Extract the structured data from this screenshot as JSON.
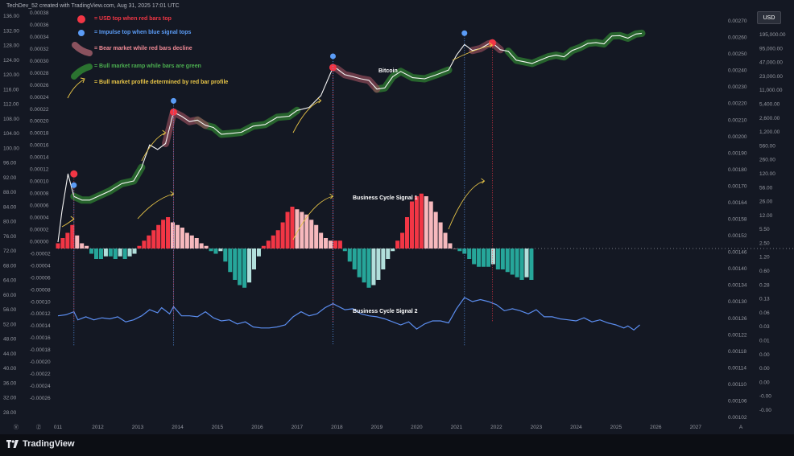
{
  "header": {
    "text": "TechDev_52 created with TradingView.com, Aug 31, 2025 17:01 UTC"
  },
  "footer": {
    "logo_text": "TradingView"
  },
  "scale_badge": "USD",
  "legend": [
    {
      "label": "= USD top when red bars top",
      "color": "#f23645",
      "marker": "dot-red"
    },
    {
      "label": "= Impulse top when blue signal tops",
      "color": "#5b9cf6",
      "marker": "dot-blue"
    },
    {
      "label": "= Bear market while red bars decline",
      "color": "#f28b96",
      "marker": "stroke-bear"
    },
    {
      "label": "= Bull market ramp while bars are green",
      "color": "#4caf50",
      "marker": "stroke-bull"
    },
    {
      "label": "= Bull market profile determined by red bar profile",
      "color": "#e8c547",
      "marker": "arrow-yellow"
    }
  ],
  "annotations": {
    "price": "Bitcoin",
    "signal1": "Business Cycle Signal 1",
    "signal2": "Business Cycle Signal 2"
  },
  "axes": {
    "left_outer": [
      "136.00",
      "132.00",
      "128.00",
      "124.00",
      "120.00",
      "116.00",
      "112.00",
      "108.00",
      "104.00",
      "100.00",
      "96.00",
      "92.00",
      "88.00",
      "84.00",
      "80.00",
      "76.00",
      "72.00",
      "68.00",
      "64.00",
      "60.00",
      "56.00",
      "52.00",
      "48.00",
      "44.00",
      "40.00",
      "36.00",
      "32.00",
      "28.00"
    ],
    "left_inner": [
      "0.00038",
      "0.00036",
      "0.00034",
      "0.00032",
      "0.00030",
      "0.00028",
      "0.00026",
      "0.00024",
      "0.00022",
      "0.00020",
      "0.00018",
      "0.00016",
      "0.00014",
      "0.00012",
      "0.00010",
      "0.00008",
      "0.00006",
      "0.00004",
      "0.00002",
      "0.00000",
      "-0.00002",
      "-0.00004",
      "-0.00006",
      "-0.00008",
      "-0.00010",
      "-0.00012",
      "-0.00014",
      "-0.00016",
      "-0.00018",
      "-0.00020",
      "-0.00022",
      "-0.00024",
      "-0.00026"
    ],
    "right_inner": [
      "0.00270",
      "0.00260",
      "0.00250",
      "0.00240",
      "0.00230",
      "0.00220",
      "0.00210",
      "0.00200",
      "0.00190",
      "0.00180",
      "0.00170",
      "0.00164",
      "0.00158",
      "0.00152",
      "0.00146",
      "0.00140",
      "0.00134",
      "0.00130",
      "0.00126",
      "0.00122",
      "0.00118",
      "0.00114",
      "0.00110",
      "0.00106",
      "0.00102"
    ],
    "right_outer": [
      "195,000.00",
      "95,000.00",
      "47,000.00",
      "23,000.00",
      "11,000.00",
      "5,400.00",
      "2,600.00",
      "1,200.00",
      "560.00",
      "260.00",
      "120.00",
      "56.00",
      "26.00",
      "12.00",
      "5.50",
      "2.50",
      "1.20",
      "0.60",
      "0.28",
      "0.13",
      "0.06",
      "0.03",
      "0.01",
      "0.00",
      "0.00",
      "0.00",
      "-0.00",
      "-0.00"
    ],
    "x_ticks": [
      "011",
      "2012",
      "2013",
      "2014",
      "2015",
      "2016",
      "2017",
      "2018",
      "2019",
      "2020",
      "2021",
      "2022",
      "2023",
      "2024",
      "2025",
      "2026",
      "2027"
    ]
  },
  "chart_data": [
    {
      "type": "line",
      "title": "Bitcoin",
      "scale": "log",
      "series": [
        {
          "x": [
            2011.0,
            2011.1,
            2011.25,
            2011.4,
            2011.6,
            2011.8,
            2012.0,
            2012.3,
            2012.6,
            2012.9,
            2013.1,
            2013.3,
            2013.5,
            2013.7,
            2013.9,
            2014.1,
            2014.3,
            2014.5,
            2014.7,
            2014.9,
            2015.1,
            2015.3,
            2015.6,
            2015.9,
            2016.2,
            2016.5,
            2016.8,
            2017.0,
            2017.3,
            2017.6,
            2017.9,
            2018.0,
            2018.2,
            2018.4,
            2018.6,
            2018.8,
            2019.0,
            2019.2,
            2019.4,
            2019.6,
            2019.9,
            2020.2,
            2020.5,
            2020.8,
            2021.0,
            2021.2,
            2021.4,
            2021.6,
            2021.8,
            2021.9,
            2022.1,
            2022.3,
            2022.5,
            2022.7,
            2022.9,
            2023.1,
            2023.3,
            2023.5,
            2023.7,
            2023.9,
            2024.1,
            2024.3,
            2024.5,
            2024.7,
            2024.9,
            2025.1,
            2025.3,
            2025.5,
            2025.65
          ],
          "y": [
            0.3,
            2,
            20,
            5,
            4,
            4,
            5,
            7,
            11,
            13,
            30,
            120,
            90,
            130,
            900,
            700,
            500,
            550,
            400,
            350,
            230,
            240,
            260,
            380,
            420,
            650,
            700,
            1000,
            1200,
            2500,
            14000,
            13000,
            9000,
            8000,
            7000,
            6400,
            3700,
            4000,
            8000,
            11000,
            7500,
            7000,
            9000,
            12000,
            30000,
            58000,
            40000,
            45000,
            60000,
            64000,
            42000,
            38000,
            22000,
            20000,
            18000,
            22000,
            27000,
            30000,
            27000,
            40000,
            48000,
            62000,
            65000,
            60000,
            98000,
            100000,
            85000,
            110000,
            115000
          ]
        }
      ]
    },
    {
      "type": "bar",
      "title": "Business Cycle Signal 1",
      "x_start": 2011.0,
      "x_step": 0.12,
      "values": [
        2e-05,
        4e-05,
        6e-05,
        9e-05,
        5e-05,
        2e-05,
        1e-05,
        -2e-05,
        -4e-05,
        -4e-05,
        -3e-05,
        -3e-05,
        -4e-05,
        -3e-05,
        -4e-05,
        -3e-05,
        -2e-05,
        1e-05,
        3e-05,
        5e-05,
        7e-05,
        9e-05,
        0.00011,
        0.00012,
        0.0001,
        9e-05,
        8e-05,
        6e-05,
        5e-05,
        4e-05,
        2e-05,
        1e-05,
        -1e-05,
        -2e-05,
        -1e-05,
        -5e-05,
        -9e-05,
        -0.00012,
        -0.00014,
        -0.00015,
        -0.00013,
        -8e-05,
        -3e-05,
        1e-05,
        3e-05,
        5e-05,
        7e-05,
        0.0001,
        0.00014,
        0.00016,
        0.00015,
        0.00014,
        0.00013,
        0.00011,
        9e-05,
        6e-05,
        4e-05,
        3e-05,
        3e-05,
        3e-05,
        -1e-05,
        -5e-05,
        -8e-05,
        -0.00011,
        -0.00013,
        -0.00015,
        -0.00014,
        -0.00012,
        -8e-05,
        -4e-05,
        -1e-05,
        3e-05,
        6e-05,
        0.00012,
        0.00018,
        0.0002,
        0.00021,
        0.0002,
        0.00018,
        0.00014,
        0.0001,
        6e-05,
        2e-05,
        0.0,
        -1e-05,
        -2e-05,
        -4e-05,
        -6e-05,
        -7e-05,
        -7e-05,
        -7e-05,
        -6e-05,
        -8e-05,
        -8e-05,
        -9e-05,
        -0.0001,
        -0.00011,
        -0.00012,
        -0.00011,
        -0.00012
      ],
      "colors": {
        "rising_pos": "#f23645",
        "falling_pos": "#f7b9bd",
        "falling_neg": "#26a69a",
        "rising_neg": "#b2dfdb"
      }
    },
    {
      "type": "line",
      "title": "Business Cycle Signal 2",
      "series": [
        {
          "x": [
            2011.0,
            2011.2,
            2011.4,
            2011.5,
            2011.7,
            2011.9,
            2012.1,
            2012.3,
            2012.5,
            2012.7,
            2012.9,
            2013.1,
            2013.3,
            2013.5,
            2013.6,
            2013.8,
            2013.9,
            2014.1,
            2014.3,
            2014.5,
            2014.7,
            2014.9,
            2015.1,
            2015.3,
            2015.5,
            2015.7,
            2015.9,
            2016.1,
            2016.3,
            2016.5,
            2016.7,
            2016.9,
            2017.1,
            2017.3,
            2017.5,
            2017.7,
            2017.9,
            2018.0,
            2018.2,
            2018.4,
            2018.6,
            2018.8,
            2019.0,
            2019.2,
            2019.4,
            2019.6,
            2019.8,
            2020.0,
            2020.2,
            2020.4,
            2020.6,
            2020.8,
            2021.0,
            2021.2,
            2021.4,
            2021.6,
            2021.8,
            2022.0,
            2022.2,
            2022.4,
            2022.6,
            2022.8,
            2023.0,
            2023.2,
            2023.4,
            2023.6,
            2023.8,
            2024.0,
            2024.2,
            2024.4,
            2024.6,
            2024.8,
            2025.0,
            2025.2,
            2025.3,
            2025.45,
            2025.6
          ],
          "y": [
            0.00122,
            0.00123,
            0.00126,
            0.00118,
            0.00121,
            0.00118,
            0.0012,
            0.00119,
            0.00121,
            0.00116,
            0.00118,
            0.00122,
            0.00128,
            0.00125,
            0.0013,
            0.00124,
            0.00131,
            0.00122,
            0.00122,
            0.00121,
            0.00126,
            0.0012,
            0.00117,
            0.00118,
            0.00114,
            0.00116,
            0.00111,
            0.0011,
            0.0011,
            0.00111,
            0.00113,
            0.00121,
            0.00126,
            0.00122,
            0.00124,
            0.0013,
            0.00134,
            0.00132,
            0.00128,
            0.00129,
            0.00124,
            0.00122,
            0.00121,
            0.00119,
            0.00116,
            0.00113,
            0.00116,
            0.00109,
            0.00114,
            0.00117,
            0.00117,
            0.00115,
            0.00129,
            0.0014,
            0.00136,
            0.00138,
            0.00136,
            0.00133,
            0.00127,
            0.00129,
            0.00127,
            0.00124,
            0.00128,
            0.00121,
            0.00121,
            0.00119,
            0.00118,
            0.00117,
            0.0012,
            0.00116,
            0.00118,
            0.00115,
            0.00113,
            0.0011,
            0.00112,
            0.00108,
            0.00113
          ]
        }
      ]
    }
  ]
}
